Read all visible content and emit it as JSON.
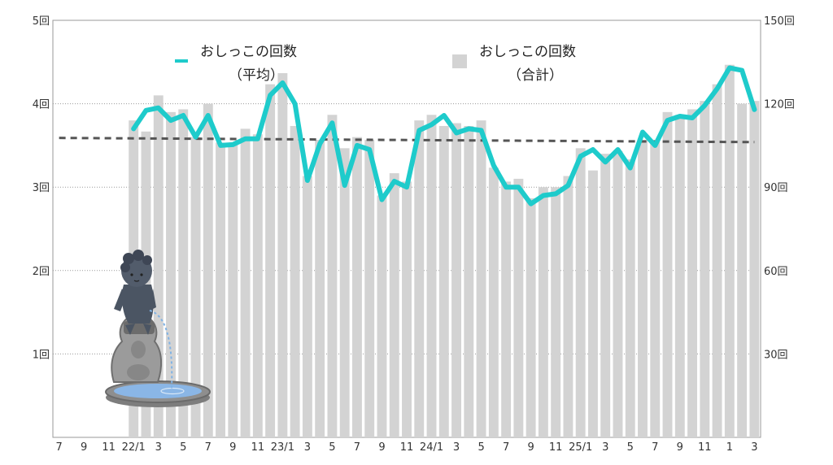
{
  "chart_data": {
    "type": "bar+line",
    "x_tick_labels": [
      "7",
      "9",
      "11",
      "22/1",
      "3",
      "5",
      "7",
      "9",
      "11",
      "23/1",
      "3",
      "5",
      "7",
      "9",
      "11",
      "24/1",
      "3",
      "5",
      "7",
      "9",
      "11",
      "25/1",
      "3",
      "5",
      "7",
      "9",
      "11",
      "1",
      "3"
    ],
    "x_tick_month_index": [
      0,
      2,
      4,
      6,
      8,
      10,
      12,
      14,
      16,
      18,
      20,
      22,
      24,
      26,
      28,
      30,
      32,
      34,
      36,
      38,
      40,
      42,
      44,
      46,
      48,
      50,
      52,
      54,
      56
    ],
    "month_count": 57,
    "left_axis": {
      "ticks": [
        "1回",
        "2回",
        "3回",
        "4回",
        "5回"
      ],
      "ylim": [
        0,
        5
      ]
    },
    "right_axis": {
      "ticks": [
        "30回",
        "60回",
        "90回",
        "120回",
        "150回"
      ],
      "ylim": [
        0,
        150
      ]
    },
    "grid": "horizontal dotted",
    "series": [
      {
        "name": "おしっこの回数（合計）",
        "axis": "right",
        "type": "bar",
        "color": "#d3d3d3",
        "start_index": 6,
        "values": [
          114,
          110,
          123,
          117,
          118,
          108,
          120,
          106,
          106,
          111,
          109,
          127,
          131,
          112,
          94,
          107,
          116,
          104,
          108,
          107,
          87,
          95,
          92,
          114,
          116,
          112,
          113,
          112,
          114,
          97,
          92,
          93,
          86,
          90,
          90,
          94,
          104,
          96,
          102,
          103,
          100,
          107,
          107,
          117,
          116,
          118,
          121,
          127,
          134,
          120,
          121
        ]
      },
      {
        "name": "おしっこの回数（平均）",
        "axis": "left",
        "type": "line",
        "color": "#1ecbcb",
        "start_index": 6,
        "values": [
          3.7,
          3.92,
          3.95,
          3.8,
          3.86,
          3.6,
          3.86,
          3.5,
          3.51,
          3.58,
          3.58,
          4.1,
          4.25,
          4.0,
          3.08,
          3.52,
          3.77,
          3.02,
          3.5,
          3.45,
          2.85,
          3.07,
          3.0,
          3.68,
          3.75,
          3.86,
          3.65,
          3.7,
          3.68,
          3.26,
          3.0,
          3.0,
          2.8,
          2.9,
          2.92,
          3.02,
          3.37,
          3.45,
          3.3,
          3.45,
          3.23,
          3.66,
          3.5,
          3.8,
          3.85,
          3.83,
          3.98,
          4.18,
          4.43,
          4.4,
          3.93
        ]
      },
      {
        "name": "trend",
        "axis": "left",
        "type": "dashed-line",
        "color": "#555555",
        "x_index": [
          0,
          56
        ],
        "values": [
          3.59,
          3.54
        ]
      }
    ],
    "legend": {
      "placement": "top",
      "line_label": [
        "おしっこの回数",
        "（平均）"
      ],
      "bar_label": [
        "おしっこの回数",
        "（合計）"
      ]
    }
  }
}
